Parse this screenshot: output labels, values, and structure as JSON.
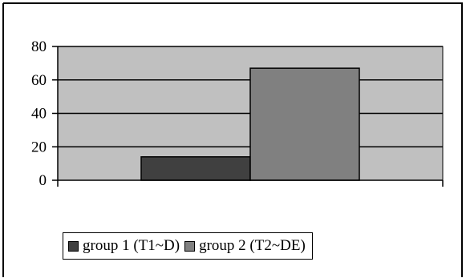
{
  "chart_data": {
    "type": "bar",
    "categories": [
      ""
    ],
    "series": [
      {
        "name": "group 1 (T1~D)",
        "values": [
          14
        ],
        "color": "#404040"
      },
      {
        "name": "group 2 (T2~DE)",
        "values": [
          67
        ],
        "color": "#808080"
      }
    ],
    "title": "",
    "xlabel": "",
    "ylabel": "",
    "ylim": [
      0,
      80
    ],
    "yticks": [
      "0",
      "20",
      "40",
      "60",
      "80"
    ],
    "grid": true,
    "legend_position": "bottom",
    "plot_background": "#c0c0c0"
  }
}
